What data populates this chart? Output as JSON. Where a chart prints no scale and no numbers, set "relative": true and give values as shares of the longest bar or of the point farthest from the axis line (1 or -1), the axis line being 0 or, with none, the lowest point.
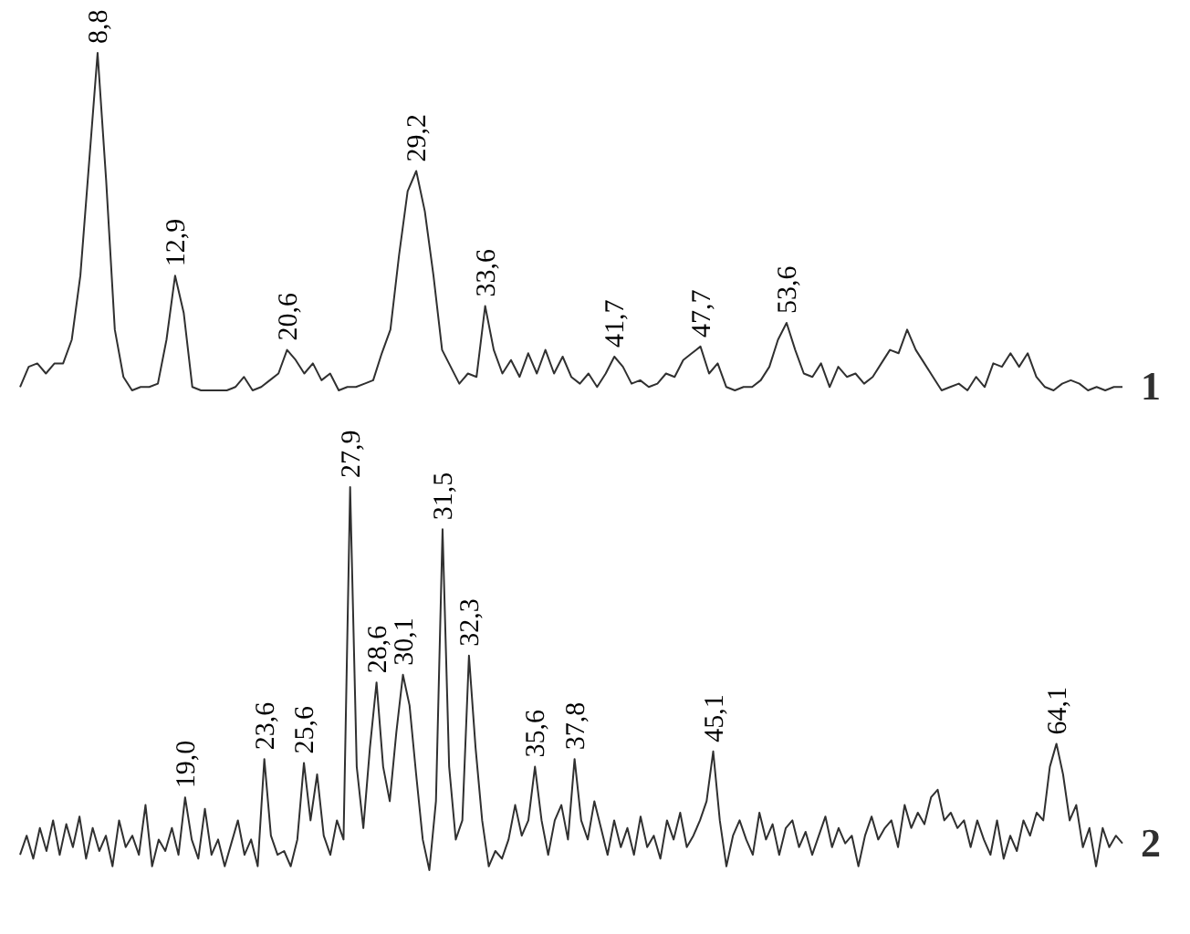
{
  "chart_data": [
    {
      "type": "line",
      "relative": true,
      "tick_labels": false,
      "categories": [
        null,
        null,
        null,
        null,
        null,
        null,
        null,
        null,
        null,
        "8,8",
        null,
        null,
        null,
        null,
        null,
        null,
        null,
        null,
        "12,9",
        null,
        null,
        null,
        null,
        null,
        null,
        null,
        null,
        null,
        null,
        null,
        null,
        "20,6",
        null,
        null,
        null,
        null,
        null,
        null,
        null,
        null,
        null,
        null,
        null,
        null,
        null,
        null,
        "29,2",
        null,
        null,
        null,
        null,
        null,
        null,
        null,
        "33,6",
        null,
        null,
        null,
        null,
        null,
        null,
        null,
        null,
        null,
        null,
        null,
        null,
        null,
        null,
        "41,7",
        null,
        null,
        null,
        null,
        null,
        null,
        null,
        null,
        null,
        "47,7",
        null,
        null,
        null,
        null,
        null,
        null,
        null,
        null,
        null,
        "53,6",
        null,
        null,
        null,
        null,
        null,
        null,
        null,
        null,
        null,
        null,
        null,
        null,
        null,
        null,
        null,
        null,
        null,
        null,
        null,
        null,
        null,
        null,
        null,
        null,
        null,
        null,
        null,
        null,
        null,
        null,
        null,
        null,
        null,
        null,
        null,
        null,
        null,
        null,
        null
      ],
      "series": [
        {
          "name": "1",
          "color": "#303030",
          "values": [
            0.01,
            0.07,
            0.08,
            0.05,
            0.08,
            0.08,
            0.15,
            0.34,
            0.67,
            1.0,
            0.62,
            0.18,
            0.04,
            0,
            0.01,
            0.01,
            0.02,
            0.15,
            0.34,
            0.23,
            0.01,
            0,
            0,
            0,
            0,
            0.01,
            0.04,
            0,
            0.01,
            0.03,
            0.05,
            0.12,
            0.09,
            0.05,
            0.08,
            0.03,
            0.05,
            0,
            0.01,
            0.01,
            0.02,
            0.03,
            0.11,
            0.18,
            0.4,
            0.59,
            0.65,
            0.53,
            0.34,
            0.12,
            0.07,
            0.02,
            0.05,
            0.04,
            0.25,
            0.12,
            0.05,
            0.09,
            0.04,
            0.11,
            0.05,
            0.12,
            0.05,
            0.1,
            0.04,
            0.02,
            0.05,
            0.01,
            0.05,
            0.1,
            0.07,
            0.02,
            0.03,
            0.01,
            0.02,
            0.05,
            0.04,
            0.09,
            0.11,
            0.13,
            0.05,
            0.08,
            0.01,
            0,
            0.01,
            0.01,
            0.03,
            0.07,
            0.15,
            0.2,
            0.12,
            0.05,
            0.04,
            0.08,
            0.01,
            0.07,
            0.04,
            0.05,
            0.02,
            0.04,
            0.08,
            0.12,
            0.11,
            0.18,
            0.12,
            0.08,
            0.04,
            0,
            0.01,
            0.02,
            0,
            0.04,
            0.01,
            0.08,
            0.07,
            0.11,
            0.07,
            0.11,
            0.04,
            0.01,
            0,
            0.02,
            0.03,
            0.02,
            0,
            0.01,
            0,
            0.01,
            0.01
          ]
        }
      ]
    },
    {
      "type": "line",
      "relative": true,
      "tick_labels": false,
      "categories": [
        null,
        null,
        null,
        null,
        null,
        null,
        null,
        null,
        null,
        null,
        null,
        null,
        null,
        null,
        null,
        null,
        null,
        null,
        null,
        null,
        null,
        null,
        null,
        null,
        null,
        "19,0",
        null,
        null,
        null,
        null,
        null,
        null,
        null,
        null,
        null,
        null,
        null,
        "23,6",
        null,
        null,
        null,
        null,
        null,
        "25,6",
        null,
        null,
        null,
        null,
        null,
        null,
        "27,9",
        null,
        null,
        null,
        "28,6",
        null,
        null,
        null,
        "30,1",
        null,
        null,
        null,
        null,
        null,
        "31,5",
        null,
        null,
        null,
        "32,3",
        null,
        null,
        null,
        null,
        null,
        null,
        null,
        null,
        null,
        "35,6",
        null,
        null,
        null,
        null,
        null,
        "37,8",
        null,
        null,
        null,
        null,
        null,
        null,
        null,
        null,
        null,
        null,
        null,
        null,
        null,
        null,
        null,
        null,
        null,
        null,
        null,
        null,
        "45,1",
        null,
        null,
        null,
        null,
        null,
        null,
        null,
        null,
        null,
        null,
        null,
        null,
        null,
        null,
        null,
        null,
        null,
        null,
        null,
        null,
        null,
        null,
        null,
        null,
        null,
        null,
        null,
        null,
        null,
        null,
        null,
        null,
        null,
        null,
        null,
        null,
        null,
        null,
        null,
        null,
        null,
        null,
        null,
        null,
        null,
        null,
        null,
        null,
        null,
        null,
        null,
        "64,1",
        null,
        null,
        null,
        null,
        null,
        null,
        null,
        null,
        null,
        null
      ],
      "series": [
        {
          "name": "2",
          "color": "#303030",
          "values": [
            0.04,
            0.09,
            0.03,
            0.11,
            0.05,
            0.13,
            0.04,
            0.12,
            0.06,
            0.14,
            0.03,
            0.11,
            0.05,
            0.09,
            0.01,
            0.13,
            0.06,
            0.09,
            0.04,
            0.17,
            0.01,
            0.08,
            0.05,
            0.11,
            0.04,
            0.19,
            0.08,
            0.03,
            0.16,
            0.04,
            0.08,
            0.01,
            0.07,
            0.13,
            0.04,
            0.08,
            0.01,
            0.29,
            0.09,
            0.04,
            0.05,
            0.01,
            0.08,
            0.28,
            0.13,
            0.25,
            0.09,
            0.04,
            0.13,
            0.08,
            1.0,
            0.27,
            0.11,
            0.32,
            0.49,
            0.27,
            0.18,
            0.36,
            0.51,
            0.43,
            0.25,
            0.08,
            0,
            0.18,
            0.89,
            0.27,
            0.08,
            0.13,
            0.56,
            0.32,
            0.13,
            0.01,
            0.05,
            0.03,
            0.08,
            0.17,
            0.09,
            0.13,
            0.27,
            0.13,
            0.04,
            0.13,
            0.17,
            0.08,
            0.29,
            0.13,
            0.08,
            0.18,
            0.11,
            0.04,
            0.13,
            0.06,
            0.11,
            0.04,
            0.14,
            0.06,
            0.09,
            0.03,
            0.13,
            0.08,
            0.15,
            0.06,
            0.09,
            0.13,
            0.18,
            0.31,
            0.13,
            0.01,
            0.09,
            0.13,
            0.08,
            0.04,
            0.15,
            0.08,
            0.12,
            0.04,
            0.11,
            0.13,
            0.06,
            0.1,
            0.04,
            0.09,
            0.14,
            0.06,
            0.11,
            0.07,
            0.09,
            0.01,
            0.09,
            0.14,
            0.08,
            0.11,
            0.13,
            0.06,
            0.17,
            0.11,
            0.15,
            0.12,
            0.19,
            0.21,
            0.13,
            0.15,
            0.11,
            0.13,
            0.06,
            0.13,
            0.08,
            0.04,
            0.13,
            0.03,
            0.09,
            0.05,
            0.13,
            0.09,
            0.15,
            0.13,
            0.27,
            0.33,
            0.25,
            0.13,
            0.17,
            0.06,
            0.11,
            0.01,
            0.11,
            0.06,
            0.09,
            0.07
          ]
        }
      ]
    }
  ]
}
